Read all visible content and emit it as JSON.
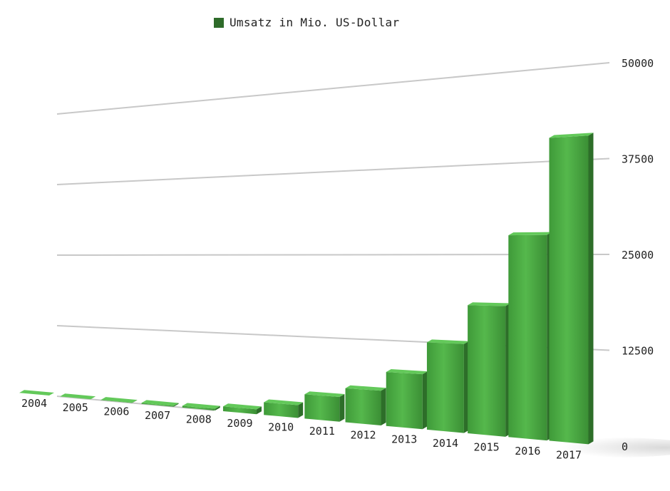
{
  "chart_data": {
    "type": "bar",
    "title": "",
    "xlabel": "",
    "ylabel": "",
    "legend": {
      "label": "Umsatz in Mio. US-Dollar",
      "position": "top-center"
    },
    "ylim": [
      0,
      50000
    ],
    "y_ticks": [
      "0",
      "12500",
      "25000",
      "37500",
      "50000"
    ],
    "categories": [
      "2004",
      "2005",
      "2006",
      "2007",
      "2008",
      "2009",
      "2010",
      "2011",
      "2012",
      "2013",
      "2014",
      "2015",
      "2016",
      "2017"
    ],
    "series": [
      {
        "name": "Umsatz in Mio. US-Dollar",
        "values": [
          0.4,
          9,
          48,
          153,
          272,
          777,
          1974,
          3711,
          5089,
          7872,
          12466,
          17928,
          27638,
          40653
        ]
      }
    ],
    "grid": true,
    "colors": {
      "bar_front": "#4caf45",
      "bar_top": "#63c95a",
      "bar_side": "#2d6e29",
      "legend": "#2e6b2a",
      "grid": "#c8c8c8"
    }
  }
}
